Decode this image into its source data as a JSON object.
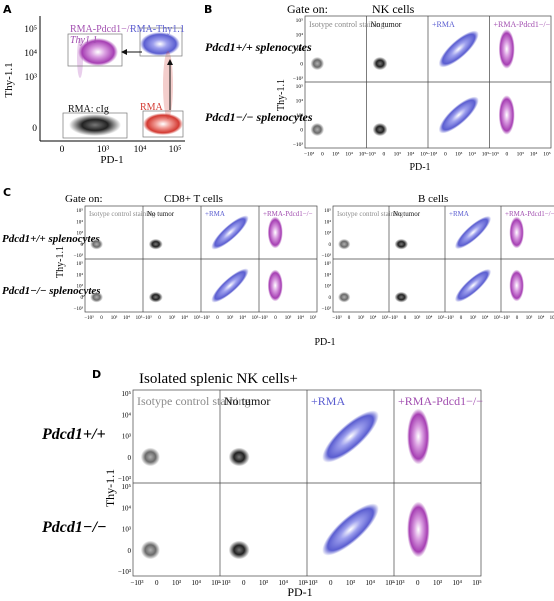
{
  "panels": {
    "A": {
      "label": "A",
      "ylabel": "Thy-1.1",
      "xlabel": "PD-1",
      "yticks": [
        "10⁵",
        "10⁴",
        "10³",
        "0"
      ],
      "xticks": [
        "0",
        "10³",
        "10⁴",
        "10⁵"
      ],
      "gates": {
        "pd1ko_line1": "RMA-Pdcd1−/−",
        "pd1ko_line2": "Thy1.1",
        "rma_thy": "RMA-Thy1.1",
        "clg": "RMA: cIg",
        "rma": "RMA"
      }
    },
    "B": {
      "label": "B",
      "gate_on": "Gate on:",
      "population": "NK cells",
      "rows": [
        "Pdcd1+/+ splenocytes",
        "Pdcd1−/− splenocytes"
      ],
      "columns": [
        "Isotype control staining",
        "No tumor",
        "+RMA",
        "+RMA-Pdcd1−/−"
      ],
      "ylabel": "Thy-1.1",
      "xlabel": "PD-1"
    },
    "C": {
      "label": "C",
      "gate_on": "Gate on:",
      "pop1": "CD8+ T cells",
      "pop2": "B cells",
      "rows": [
        "Pdcd1+/+ splenocytes",
        "Pdcd1−/− splenocytes"
      ],
      "columns": [
        "Isotype control staining",
        "No tumor",
        "+RMA",
        "+RMA-Pdcd1−/−"
      ],
      "ylabel": "Thy-1.1",
      "xlabel": "PD-1"
    },
    "D": {
      "label": "D",
      "title": "Isolated splenic NK cells+",
      "rows": [
        "Pdcd1+/+",
        "Pdcd1−/−"
      ],
      "columns": [
        "Isotype control staining",
        "No tumor",
        "+RMA",
        "+RMA-Pdcd1−/−"
      ],
      "ylabel": "Thy-1.1",
      "xlabel": "PD-1"
    }
  },
  "colors": {
    "gray": "#8a8a8a",
    "dark": "#2e2e2e",
    "blue": "#6f72d8",
    "purple": "#b55bbf",
    "red": "#d9433c",
    "purple_label": "#a24fb0"
  }
}
